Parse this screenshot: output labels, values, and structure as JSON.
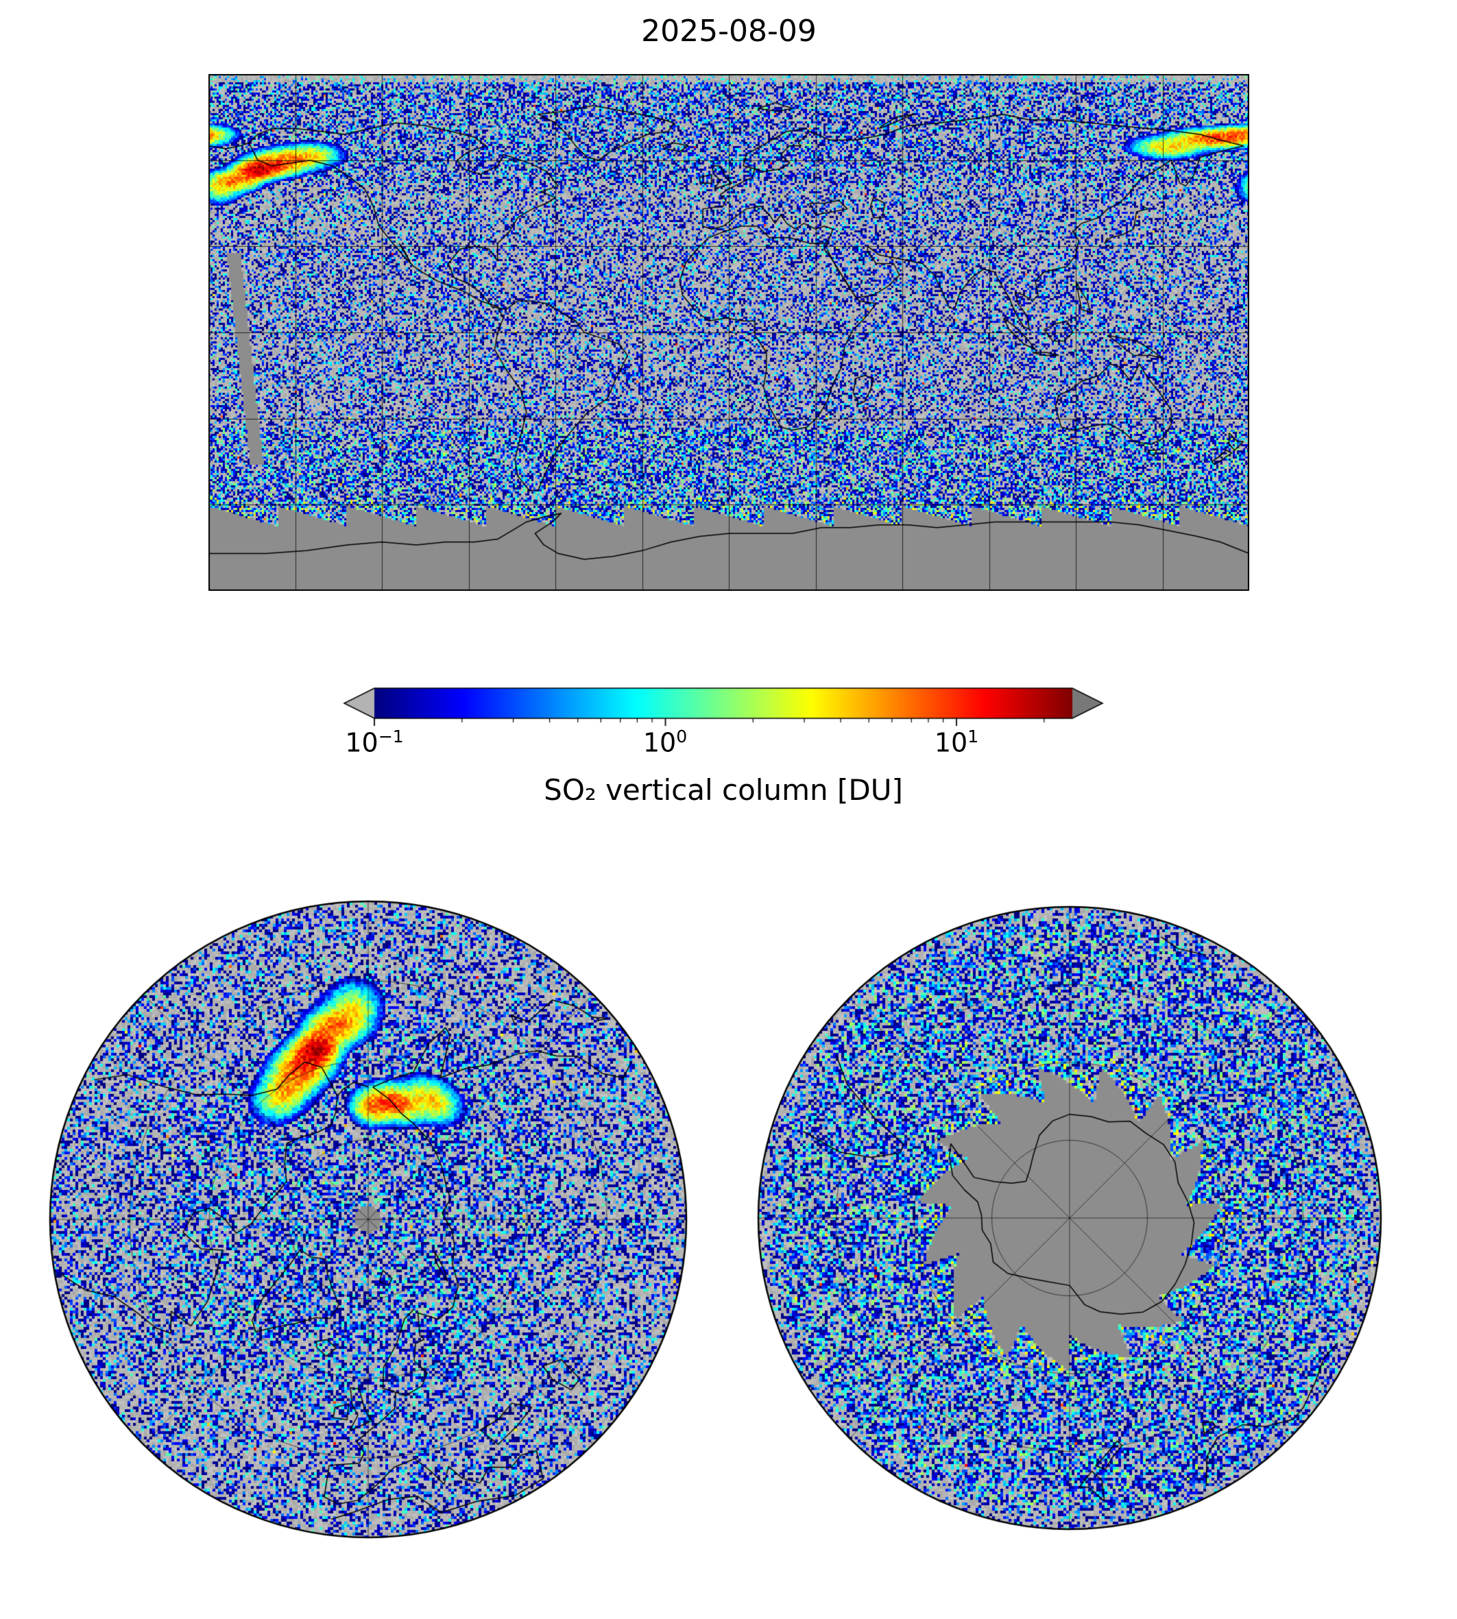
{
  "title": "2025-08-09",
  "colorbar": {
    "label": "SO₂ vertical column [DU]",
    "scale": "log",
    "ticks": [
      {
        "base": "10",
        "exp": "−1",
        "value": 0.1
      },
      {
        "base": "10",
        "exp": "0",
        "value": 1
      },
      {
        "base": "10",
        "exp": "1",
        "value": 10
      }
    ],
    "range_DU": [
      0.1,
      25
    ],
    "under_color": "#b3b3b3",
    "over_color": "#787878",
    "no_data_color": "#8d8d8d",
    "colormap": "jet-like (navy → blue → cyan → green → yellow → orange → red → dark red)"
  },
  "chart_data": {
    "type": "heatmap",
    "title": "2025-08-09",
    "quantity": "SO₂ vertical column",
    "units": "DU",
    "scale": "log10",
    "value_range": [
      0.1,
      25
    ],
    "colorbar_ticks": [
      0.1,
      1,
      10
    ],
    "panels": [
      {
        "name": "global map",
        "projection": "equirectangular",
        "lon_range": [
          -180,
          180
        ],
        "lat_range": [
          -90,
          90
        ],
        "gridline_spacing_deg": 30,
        "background": "light gray = value below 0.1 DU, medium gray = no data",
        "coverage": "daily satellite swaths; sawtooth swath edge near 61–68°S, no data in antarctic polar night; diagonal missing-orbit gap in the central Pacific"
      },
      {
        "name": "north polar view",
        "projection": "north polar azimuthal",
        "lat_edge": 30,
        "graticule": "latitude circles every 15°, meridians every 45°",
        "coverage": "full coverage except small data hole at the pole"
      },
      {
        "name": "south polar view",
        "projection": "south polar azimuthal",
        "lat_edge": -30,
        "graticule": "latitude circles every 15°, meridians every 45°",
        "coverage": "data only in ring 30°S to ~61–68°S (sawtooth inner edge); polar night region is gray (no data)"
      }
    ],
    "features": [
      {
        "label": "strong volcanic SO₂ plume (red core)",
        "location": "Alaska Peninsula / Aleutian Islands",
        "lon": -163,
        "lat": 56.5,
        "peak_DU": 20
      },
      {
        "label": "plume arc",
        "location": "Gulf of Alaska",
        "lon": -152,
        "lat": 59,
        "peak_DU": 6
      },
      {
        "label": "plume segment",
        "location": "Kamchatka / western Bering Sea",
        "lon": 168,
        "lat": 68,
        "peak_DU": 9
      },
      {
        "label": "scattered retrieval noise speckle",
        "location": "global",
        "typical_DU": "0.1–0.5"
      },
      {
        "label": "enhanced noise band",
        "location": "southern mid-latitudes 35–62°S",
        "typical_DU": "0.1–1"
      },
      {
        "label": "bright patches at swath-edge scallops",
        "location": "~60–68°S",
        "typical_DU": "0.5–4"
      }
    ]
  }
}
